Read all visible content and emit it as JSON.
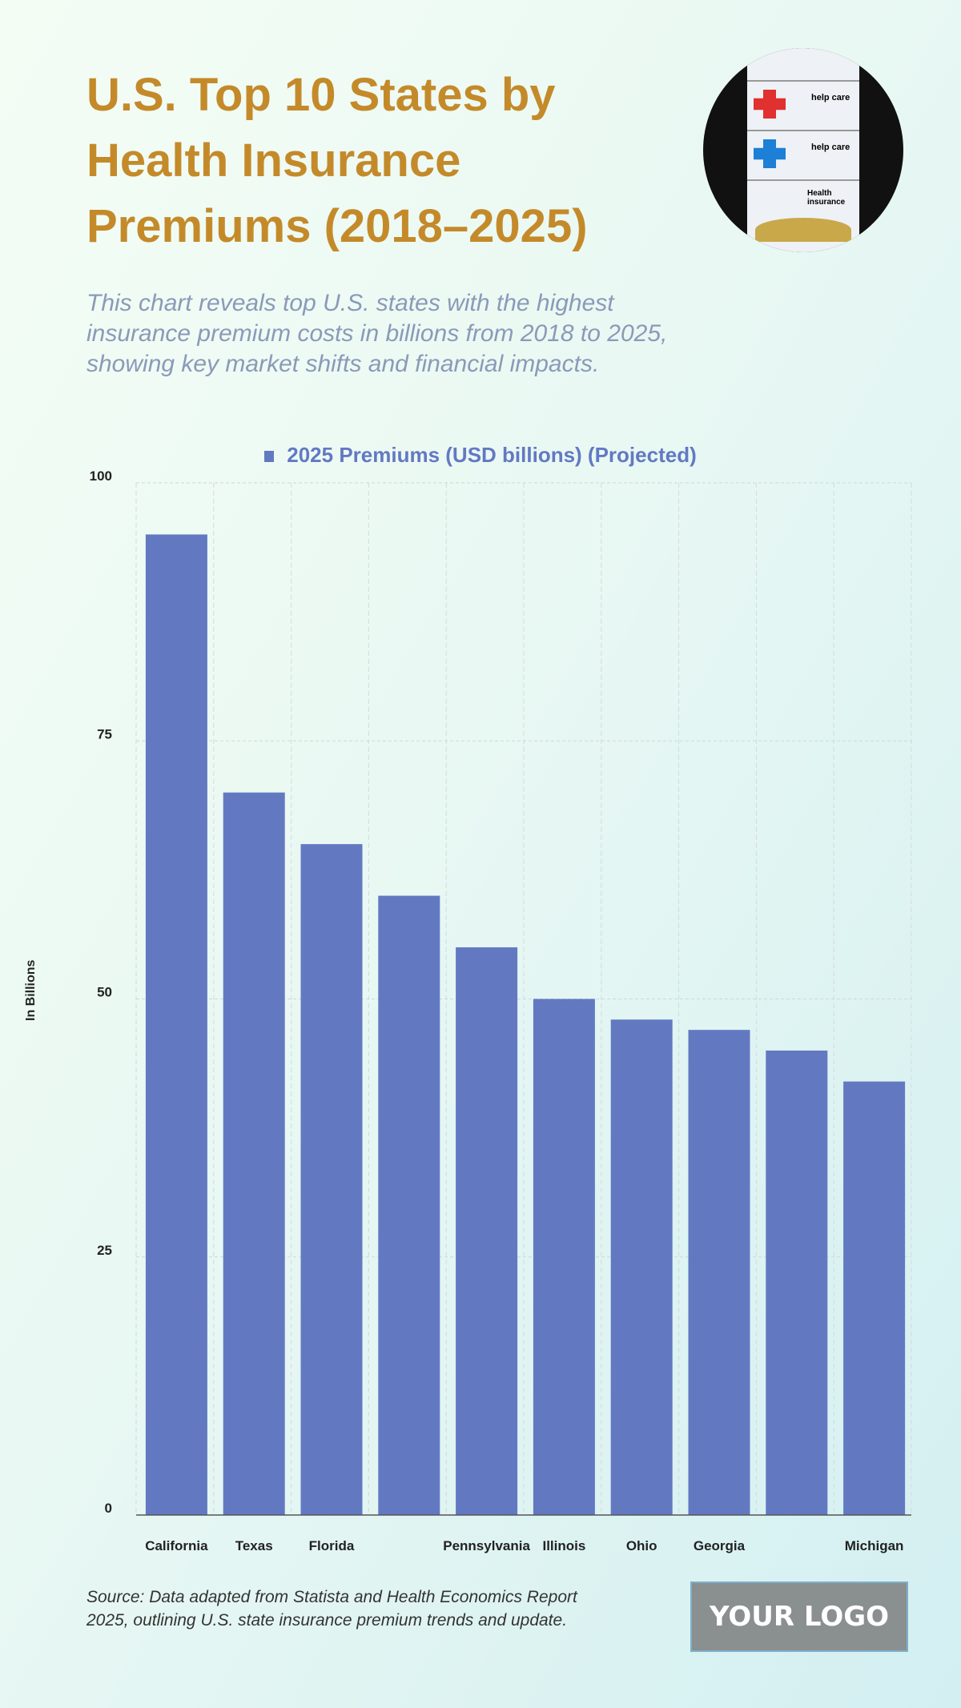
{
  "header": {
    "title": "U.S. Top 10 States by Health Insurance Premiums (2018–2025)",
    "subtitle": "This chart reveals top U.S. states with the highest insurance premium costs in billions from 2018 to 2025, showing key market shifts and financial impacts."
  },
  "photo": {
    "card_texts": [
      "help care",
      "help care",
      "Health insurance"
    ]
  },
  "chart_data": {
    "type": "bar",
    "title": "",
    "categories": [
      "California",
      "Texas",
      "Florida",
      "",
      "Pennsylvania",
      "Illinois",
      "Ohio",
      "Georgia",
      "",
      "Michigan"
    ],
    "series": [
      {
        "name": "2025 Premiums (USD billions) (Projected)",
        "values": [
          95,
          70,
          65,
          60,
          55,
          50,
          48,
          47,
          45,
          42
        ],
        "color": "#6279c2"
      }
    ],
    "xlabel": "",
    "ylabel": "In Billions",
    "ylim": [
      0,
      100
    ],
    "yticks": [
      "0",
      "25",
      "50",
      "75",
      "100"
    ],
    "grid": true,
    "legend": "top-center"
  },
  "footer": {
    "source": "Source: Data adapted from Statista and Health Economics Report 2025, outlining U.S. state insurance premium trends and update.",
    "logo": "YOUR LOGO"
  }
}
